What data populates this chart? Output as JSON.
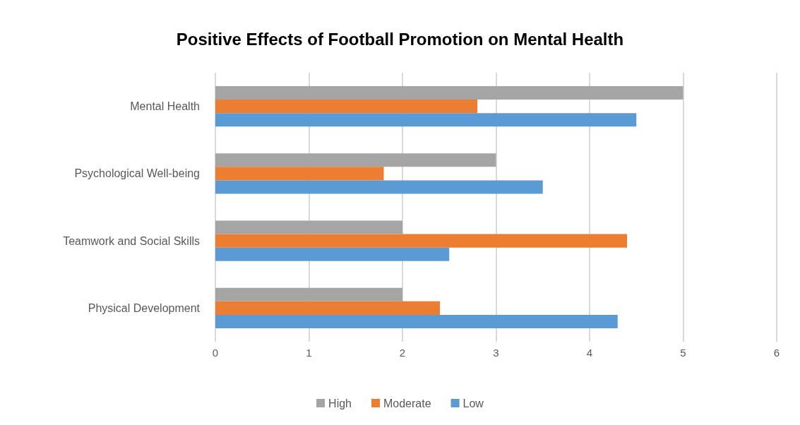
{
  "chart_data": {
    "type": "bar",
    "orientation": "horizontal",
    "title": "Positive Effects of Football Promotion on Mental Health",
    "categories": [
      "Mental Health",
      "Psychological Well-being",
      "Teamwork and Social Skills",
      "Physical Development"
    ],
    "series": [
      {
        "name": "High",
        "color": "#a5a5a5",
        "values": [
          5,
          3,
          2,
          2
        ]
      },
      {
        "name": "Moderate",
        "color": "#ed7d31",
        "values": [
          2.8,
          1.8,
          4.4,
          2.4
        ]
      },
      {
        "name": "Low",
        "color": "#5b9bd5",
        "values": [
          4.5,
          3.5,
          2.5,
          4.3
        ]
      }
    ],
    "xlim": [
      0,
      6
    ],
    "xticks": [
      0,
      1,
      2,
      3,
      4,
      5,
      6
    ],
    "grid": "x",
    "legend": "bottom"
  }
}
